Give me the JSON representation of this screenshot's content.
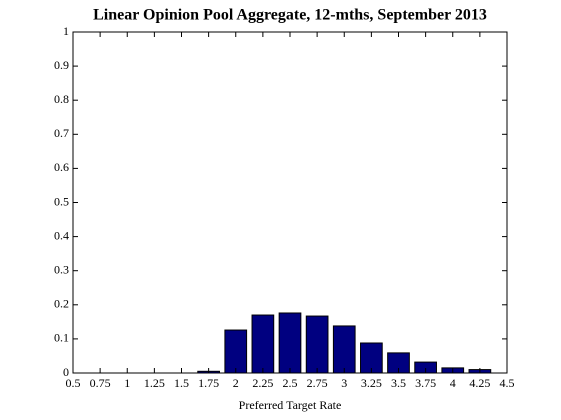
{
  "chart_data": {
    "type": "bar",
    "title": "Linear Opinion Pool Aggregate, 12-mths, September 2013",
    "x_label": "Preferred Target Rate",
    "x": [
      1.75,
      2,
      2.25,
      2.5,
      2.75,
      3,
      3.25,
      3.5,
      3.75,
      4,
      4.25
    ],
    "values": [
      0.005,
      0.126,
      0.17,
      0.176,
      0.167,
      0.138,
      0.088,
      0.059,
      0.032,
      0.015,
      0.01
    ],
    "color": "#000080",
    "xlim": [
      0.5,
      4.5
    ],
    "xticks": [
      0.5,
      0.75,
      1,
      1.25,
      1.5,
      1.75,
      2,
      2.25,
      2.5,
      2.75,
      3,
      3.25,
      3.5,
      3.75,
      4,
      4.25,
      4.5
    ],
    "ylim": [
      0,
      1
    ],
    "yticks": [
      0,
      0.1,
      0.2,
      0.3,
      0.4,
      0.5,
      0.6,
      0.7,
      0.8,
      0.9,
      1
    ]
  }
}
